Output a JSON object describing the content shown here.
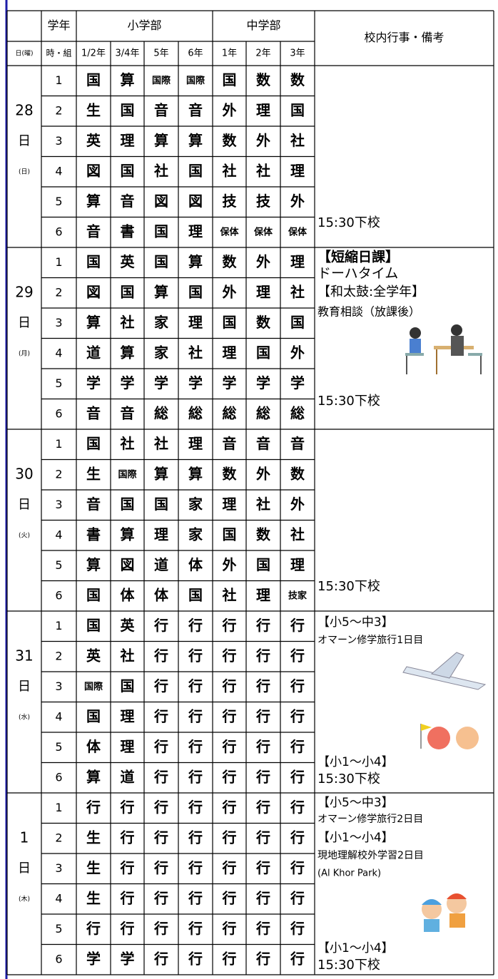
{
  "header": {
    "grade": "学年",
    "elementary": "小学部",
    "junior": "中学部",
    "notes": "校内行事・備考",
    "day_col": "日(曜)",
    "period_col": "時・組",
    "grades": [
      "1/2年",
      "3/4年",
      "5年",
      "6年",
      "1年",
      "2年",
      "3年"
    ]
  },
  "days": [
    {
      "date": "28",
      "unit": "日",
      "weekday": "(日)",
      "rows": [
        {
          "period": "1",
          "subjects": [
            "国",
            "算",
            "国際",
            "国際",
            "国",
            "数",
            "数"
          ]
        },
        {
          "period": "2",
          "subjects": [
            "生",
            "国",
            "音",
            "音",
            "外",
            "理",
            "国"
          ]
        },
        {
          "period": "3",
          "subjects": [
            "英",
            "理",
            "算",
            "算",
            "数",
            "外",
            "社"
          ]
        },
        {
          "period": "4",
          "subjects": [
            "図",
            "国",
            "社",
            "国",
            "社",
            "社",
            "理"
          ]
        },
        {
          "period": "5",
          "subjects": [
            "算",
            "音",
            "図",
            "図",
            "技",
            "技",
            "外"
          ]
        },
        {
          "period": "6",
          "subjects": [
            "音",
            "書",
            "国",
            "理",
            "保体",
            "保体",
            "保体"
          ]
        }
      ],
      "notes": [
        "15:30下校"
      ]
    },
    {
      "date": "29",
      "unit": "日",
      "weekday": "(月)",
      "rows": [
        {
          "period": "1",
          "subjects": [
            "国",
            "英",
            "国",
            "算",
            "数",
            "外",
            "理"
          ]
        },
        {
          "period": "2",
          "subjects": [
            "図",
            "国",
            "算",
            "国",
            "外",
            "理",
            "社"
          ]
        },
        {
          "period": "3",
          "subjects": [
            "算",
            "社",
            "家",
            "理",
            "国",
            "数",
            "国"
          ]
        },
        {
          "period": "4",
          "subjects": [
            "道",
            "算",
            "家",
            "社",
            "理",
            "国",
            "外"
          ]
        },
        {
          "period": "5",
          "subjects": [
            "学",
            "学",
            "学",
            "学",
            "学",
            "学",
            "学"
          ]
        },
        {
          "period": "6",
          "subjects": [
            "音",
            "音",
            "総",
            "総",
            "総",
            "総",
            "総"
          ]
        }
      ],
      "notes": [
        "【短縮日課】",
        "ドーハタイム",
        "【和太鼓:全学年】",
        "教育相談（放課後）",
        "15:30下校"
      ]
    },
    {
      "date": "30",
      "unit": "日",
      "weekday": "(火)",
      "rows": [
        {
          "period": "1",
          "subjects": [
            "国",
            "社",
            "社",
            "理",
            "音",
            "音",
            "音"
          ]
        },
        {
          "period": "2",
          "subjects": [
            "生",
            "国際",
            "算",
            "算",
            "数",
            "外",
            "数"
          ]
        },
        {
          "period": "3",
          "subjects": [
            "音",
            "国",
            "国",
            "家",
            "理",
            "社",
            "外"
          ]
        },
        {
          "period": "4",
          "subjects": [
            "書",
            "算",
            "理",
            "家",
            "国",
            "数",
            "社"
          ]
        },
        {
          "period": "5",
          "subjects": [
            "算",
            "図",
            "道",
            "体",
            "外",
            "国",
            "理"
          ]
        },
        {
          "period": "6",
          "subjects": [
            "国",
            "体",
            "体",
            "国",
            "社",
            "理",
            "技家"
          ]
        }
      ],
      "notes": [
        "15:30下校"
      ]
    },
    {
      "date": "31",
      "unit": "日",
      "weekday": "(水)",
      "rows": [
        {
          "period": "1",
          "subjects": [
            "国",
            "英",
            "行",
            "行",
            "行",
            "行",
            "行"
          ]
        },
        {
          "period": "2",
          "subjects": [
            "英",
            "社",
            "行",
            "行",
            "行",
            "行",
            "行"
          ]
        },
        {
          "period": "3",
          "subjects": [
            "国際",
            "国",
            "行",
            "行",
            "行",
            "行",
            "行"
          ]
        },
        {
          "period": "4",
          "subjects": [
            "国",
            "理",
            "行",
            "行",
            "行",
            "行",
            "行"
          ]
        },
        {
          "period": "5",
          "subjects": [
            "体",
            "理",
            "行",
            "行",
            "行",
            "行",
            "行"
          ]
        },
        {
          "period": "6",
          "subjects": [
            "算",
            "道",
            "行",
            "行",
            "行",
            "行",
            "行"
          ]
        }
      ],
      "notes": [
        "【小5～中3】",
        "オマーン修学旅行1日目",
        "【小1～小4】",
        "15:30下校"
      ]
    },
    {
      "date": "1",
      "unit": "日",
      "weekday": "(木)",
      "rows": [
        {
          "period": "1",
          "subjects": [
            "行",
            "行",
            "行",
            "行",
            "行",
            "行",
            "行"
          ]
        },
        {
          "period": "2",
          "subjects": [
            "生",
            "行",
            "行",
            "行",
            "行",
            "行",
            "行"
          ]
        },
        {
          "period": "3",
          "subjects": [
            "生",
            "行",
            "行",
            "行",
            "行",
            "行",
            "行"
          ]
        },
        {
          "period": "4",
          "subjects": [
            "生",
            "行",
            "行",
            "行",
            "行",
            "行",
            "行"
          ]
        },
        {
          "period": "5",
          "subjects": [
            "行",
            "行",
            "行",
            "行",
            "行",
            "行",
            "行"
          ]
        },
        {
          "period": "6",
          "subjects": [
            "学",
            "学",
            "行",
            "行",
            "行",
            "行",
            "行"
          ]
        }
      ],
      "notes": [
        "【小5～中3】",
        "オマーン修学旅行2日目",
        "【小1～小4】",
        "現地理解校外学習2日目",
        "(Al Khor Park)",
        "【小1～小4】",
        "15:30下校"
      ]
    }
  ]
}
